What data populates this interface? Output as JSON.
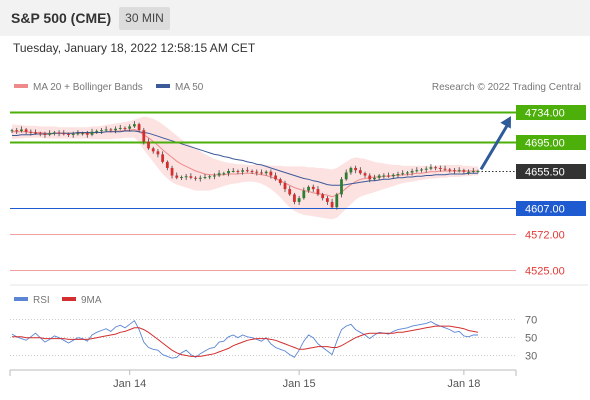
{
  "header": {
    "title": "S&P 500 (CME)",
    "timeframe": "30 MIN"
  },
  "timestamp": "Tuesday, January 18, 2022 12:58:15 AM CET",
  "credit": "Research © 2022 Trading Central",
  "legend": {
    "ma20_bb": "MA 20 + Bollinger Bands",
    "ma50": "MA 50",
    "rsi": "RSI",
    "rsi_ma": "9MA"
  },
  "colors": {
    "candle_up": "#2e7d32",
    "candle_down": "#d32f2f",
    "ma20": "#ef8a8a",
    "bollinger_fill": "#fde2e2",
    "ma50": "#3c5a9a",
    "resistance": "#4caf0a",
    "pivot": "#1f5bd0",
    "support": "#e53935",
    "current": "#333333",
    "arrow": "#2f5b9a",
    "rsi": "#5b86d6",
    "rsi_ma": "#d32f2f"
  },
  "chart_data": [
    {
      "type": "candlestick",
      "title": "S&P 500 (CME)",
      "timeframe": "30 MIN",
      "ylim": [
        4505,
        4750
      ],
      "x_ticks": [
        "Jan 14",
        "Jan 15",
        "Jan 18"
      ],
      "levels": [
        {
          "kind": "resistance",
          "value": 4734.0,
          "label": "4734.00"
        },
        {
          "kind": "resistance",
          "value": 4695.0,
          "label": "4695.00"
        },
        {
          "kind": "current",
          "value": 4655.5,
          "label": "4655.50"
        },
        {
          "kind": "pivot",
          "value": 4607.0,
          "label": "4607.00"
        },
        {
          "kind": "support",
          "value": 4572.0,
          "label": "4572.00"
        },
        {
          "kind": "support",
          "value": 4525.0,
          "label": "4525.00"
        }
      ],
      "close": [
        4710,
        4709,
        4711,
        4708,
        4707,
        4706,
        4705,
        4704,
        4706,
        4707,
        4706,
        4705,
        4704,
        4705,
        4706,
        4706,
        4704,
        4708,
        4709,
        4710,
        4711,
        4710,
        4712,
        4713,
        4712,
        4715,
        4718,
        4710,
        4695,
        4686,
        4682,
        4678,
        4668,
        4660,
        4650,
        4647,
        4648,
        4649,
        4647,
        4646,
        4647,
        4648,
        4649,
        4650,
        4653,
        4653,
        4656,
        4656,
        4655,
        4657,
        4656,
        4655,
        4654,
        4653,
        4655,
        4650,
        4645,
        4640,
        4632,
        4625,
        4615,
        4620,
        4630,
        4635,
        4632,
        4625,
        4620,
        4615,
        4608,
        4625,
        4645,
        4654,
        4660,
        4657,
        4653,
        4650,
        4645,
        4647,
        4650,
        4650,
        4649,
        4651,
        4652,
        4653,
        4654,
        4656,
        4657,
        4658,
        4659,
        4661,
        4660,
        4659,
        4658,
        4657,
        4656,
        4657,
        4655,
        4655,
        4656,
        4656
      ],
      "ma20": [
        4708,
        4708,
        4708,
        4708,
        4707,
        4707,
        4707,
        4706,
        4706,
        4706,
        4706,
        4706,
        4706,
        4706,
        4706,
        4706,
        4706,
        4706,
        4707,
        4707,
        4708,
        4708,
        4709,
        4709,
        4710,
        4710,
        4711,
        4708,
        4704,
        4700,
        4695,
        4690,
        4684,
        4679,
        4674,
        4669,
        4665,
        4662,
        4659,
        4656,
        4654,
        4652,
        4651,
        4651,
        4651,
        4651,
        4652,
        4652,
        4652,
        4653,
        4653,
        4653,
        4652,
        4651,
        4650,
        4648,
        4646,
        4643,
        4640,
        4637,
        4634,
        4632,
        4630,
        4629,
        4627,
        4626,
        4625,
        4624,
        4622,
        4624,
        4628,
        4633,
        4638,
        4642,
        4645,
        4646,
        4647,
        4648,
        4648,
        4649,
        4649,
        4650,
        4650,
        4651,
        4651,
        4652,
        4653,
        4653,
        4654,
        4655,
        4655,
        4656,
        4656,
        4656,
        4656,
        4656,
        4656,
        4656,
        4656,
        4656
      ],
      "ma50": [
        4703,
        4703,
        4704,
        4704,
        4704,
        4705,
        4705,
        4705,
        4705,
        4706,
        4706,
        4706,
        4706,
        4706,
        4707,
        4707,
        4707,
        4707,
        4707,
        4707,
        4708,
        4708,
        4708,
        4708,
        4709,
        4709,
        4709,
        4708,
        4707,
        4706,
        4704,
        4702,
        4700,
        4698,
        4696,
        4694,
        4692,
        4690,
        4688,
        4686,
        4684,
        4682,
        4680,
        4678,
        4677,
        4675,
        4674,
        4672,
        4671,
        4670,
        4668,
        4667,
        4665,
        4664,
        4662,
        4660,
        4658,
        4656,
        4654,
        4652,
        4650,
        4648,
        4646,
        4645,
        4643,
        4642,
        4640,
        4638,
        4637,
        4637,
        4637,
        4638,
        4639,
        4640,
        4641,
        4642,
        4643,
        4643,
        4644,
        4645,
        4645,
        4646,
        4647,
        4647,
        4648,
        4648,
        4649,
        4649,
        4650,
        4650,
        4651,
        4651,
        4651,
        4652,
        4652,
        4652,
        4652,
        4653,
        4653,
        4653
      ],
      "bb_upper": [
        4718,
        4717,
        4717,
        4716,
        4716,
        4716,
        4715,
        4715,
        4715,
        4715,
        4714,
        4714,
        4714,
        4714,
        4714,
        4714,
        4714,
        4715,
        4715,
        4716,
        4717,
        4718,
        4719,
        4720,
        4721,
        4722,
        4724,
        4726,
        4728,
        4727,
        4725,
        4722,
        4718,
        4713,
        4708,
        4703,
        4698,
        4694,
        4690,
        4686,
        4682,
        4678,
        4675,
        4672,
        4670,
        4668,
        4667,
        4666,
        4665,
        4665,
        4664,
        4664,
        4664,
        4664,
        4664,
        4663,
        4663,
        4663,
        4662,
        4662,
        4662,
        4662,
        4662,
        4661,
        4661,
        4660,
        4660,
        4659,
        4658,
        4660,
        4664,
        4668,
        4672,
        4674,
        4673,
        4672,
        4670,
        4668,
        4667,
        4666,
        4665,
        4664,
        4664,
        4663,
        4663,
        4663,
        4663,
        4663,
        4663,
        4663,
        4663,
        4664,
        4664,
        4664,
        4664,
        4664,
        4663,
        4663,
        4662,
        4662
      ],
      "bb_lower": [
        4698,
        4699,
        4699,
        4700,
        4700,
        4700,
        4700,
        4699,
        4699,
        4699,
        4699,
        4699,
        4699,
        4699,
        4699,
        4699,
        4699,
        4698,
        4698,
        4698,
        4698,
        4698,
        4699,
        4699,
        4700,
        4700,
        4700,
        4694,
        4684,
        4676,
        4668,
        4660,
        4652,
        4646,
        4641,
        4638,
        4636,
        4634,
        4632,
        4630,
        4630,
        4630,
        4630,
        4632,
        4634,
        4636,
        4638,
        4639,
        4640,
        4641,
        4642,
        4642,
        4641,
        4639,
        4636,
        4632,
        4627,
        4621,
        4614,
        4608,
        4603,
        4600,
        4598,
        4597,
        4596,
        4595,
        4594,
        4593,
        4592,
        4594,
        4600,
        4606,
        4612,
        4618,
        4622,
        4624,
        4626,
        4628,
        4630,
        4632,
        4634,
        4636,
        4638,
        4640,
        4641,
        4642,
        4643,
        4644,
        4645,
        4646,
        4646,
        4647,
        4647,
        4648,
        4648,
        4648,
        4649,
        4649,
        4650,
        4650
      ],
      "projection": {
        "from": 4655.5,
        "to": 4734.0
      }
    },
    {
      "type": "line",
      "title": "RSI",
      "ylim": [
        15,
        80
      ],
      "y_ticks": [
        70,
        50,
        30
      ],
      "series": [
        {
          "name": "RSI",
          "values": [
            53,
            50,
            48,
            46,
            50,
            54,
            49,
            44,
            47,
            51,
            49,
            46,
            43,
            46,
            49,
            48,
            45,
            52,
            55,
            57,
            59,
            56,
            61,
            63,
            60,
            64,
            68,
            58,
            44,
            38,
            36,
            35,
            30,
            28,
            26,
            27,
            32,
            35,
            30,
            27,
            31,
            34,
            37,
            38,
            44,
            45,
            50,
            52,
            49,
            52,
            50,
            49,
            47,
            45,
            49,
            42,
            38,
            36,
            34,
            30,
            27,
            35,
            45,
            52,
            49,
            42,
            38,
            34,
            30,
            45,
            58,
            62,
            64,
            58,
            55,
            52,
            48,
            52,
            55,
            54,
            53,
            56,
            58,
            59,
            60,
            62,
            63,
            64,
            65,
            67,
            64,
            62,
            60,
            58,
            55,
            56,
            51,
            50,
            52,
            52
          ]
        },
        {
          "name": "9MA",
          "values": [
            50,
            50,
            50,
            49,
            49,
            49,
            49,
            48,
            48,
            48,
            48,
            48,
            47,
            47,
            47,
            47,
            47,
            48,
            49,
            50,
            51,
            52,
            53,
            55,
            56,
            58,
            60,
            60,
            58,
            55,
            51,
            47,
            43,
            39,
            35,
            32,
            30,
            29,
            28,
            28,
            28,
            29,
            30,
            31,
            33,
            35,
            37,
            40,
            42,
            44,
            46,
            47,
            48,
            48,
            48,
            47,
            46,
            44,
            42,
            40,
            38,
            36,
            36,
            37,
            38,
            39,
            39,
            39,
            38,
            38,
            40,
            43,
            46,
            49,
            51,
            53,
            54,
            54,
            54,
            54,
            54,
            54,
            55,
            55,
            56,
            57,
            58,
            59,
            60,
            61,
            62,
            62,
            62,
            62,
            61,
            60,
            59,
            57,
            56,
            55
          ]
        }
      ]
    }
  ]
}
